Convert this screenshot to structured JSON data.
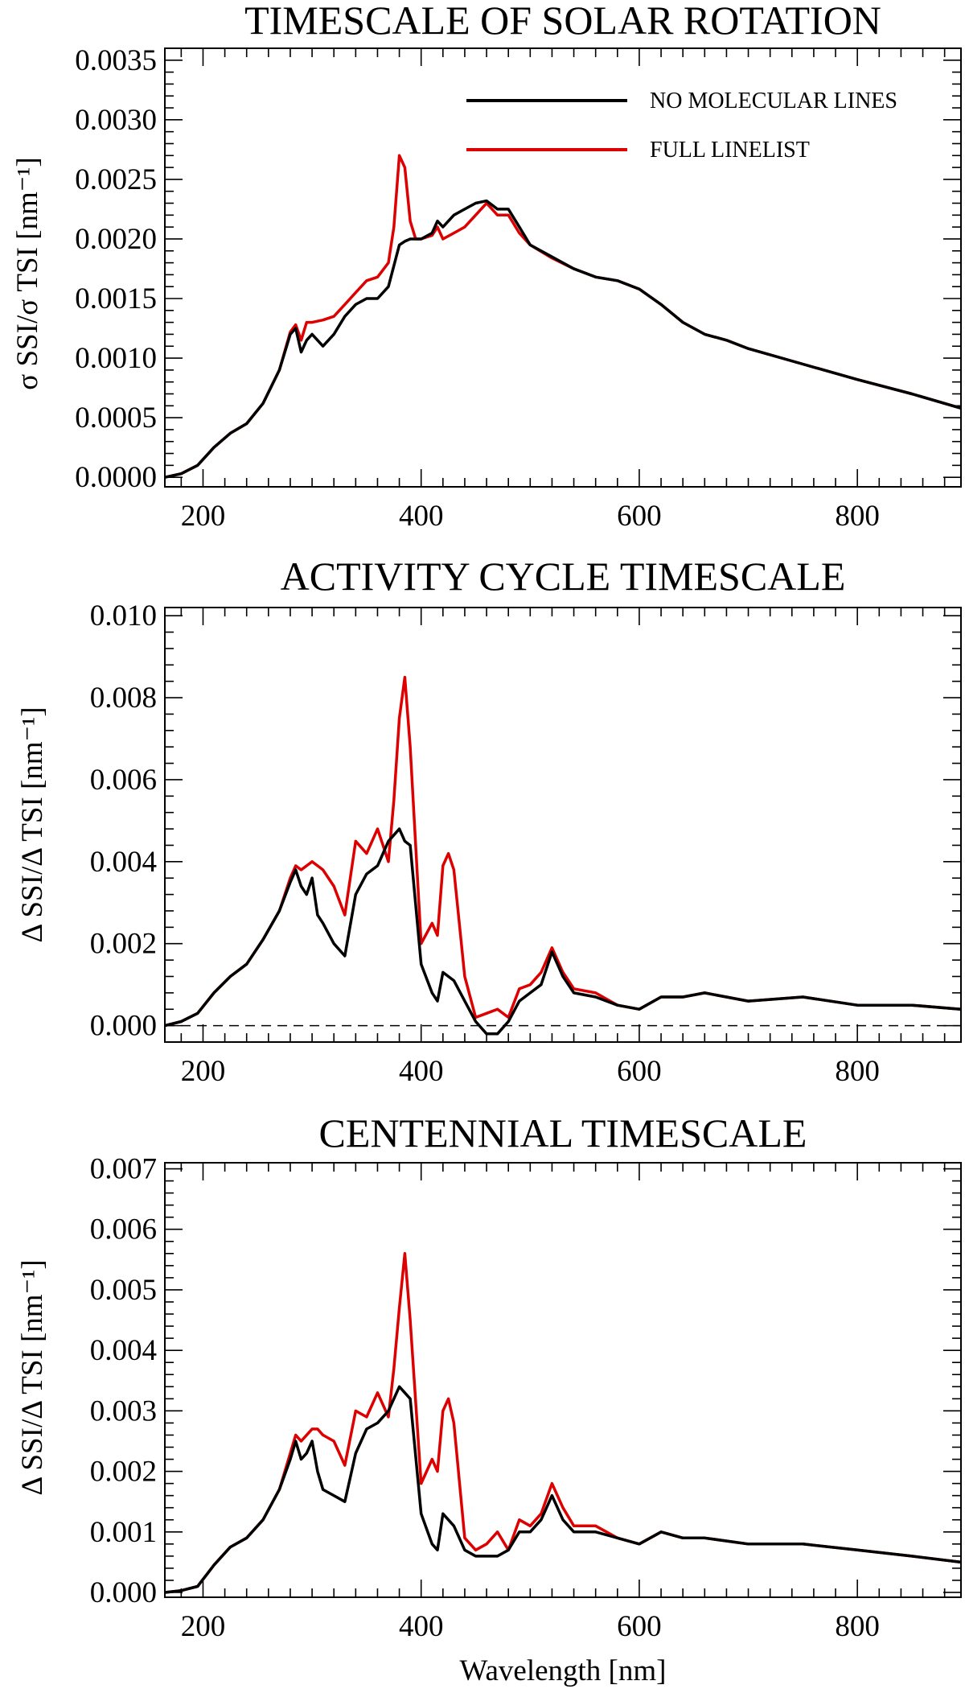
{
  "figure": {
    "xlabel": "Wavelength [nm]",
    "legend": [
      {
        "name": "NO MOLECULAR LINES",
        "color": "#000000"
      },
      {
        "name": "FULL LINELIST",
        "color": "#dd0000"
      }
    ]
  },
  "chart_data": [
    {
      "type": "line",
      "title": "TIMESCALE OF SOLAR ROTATION",
      "ylabel": "σ SSI/σ TSI [nm⁻¹]",
      "xlim": [
        165,
        895
      ],
      "ylim": [
        -8e-05,
        0.0036
      ],
      "xticks": [
        "200",
        "400",
        "600",
        "800"
      ],
      "xtick_values": [
        200,
        400,
        600,
        800
      ],
      "yticks": [
        "0.0000",
        "0.0005",
        "0.0010",
        "0.0015",
        "0.0020",
        "0.0025",
        "0.0030",
        "0.0035"
      ],
      "ytick_values": [
        0,
        0.0005,
        0.001,
        0.0015,
        0.002,
        0.0025,
        0.003,
        0.0035
      ],
      "legend_position": "top-right",
      "series": [
        {
          "name": "NO MOLECULAR LINES",
          "color": "#000000",
          "x": [
            165,
            180,
            195,
            210,
            225,
            240,
            255,
            270,
            280,
            285,
            290,
            295,
            300,
            310,
            320,
            330,
            340,
            350,
            360,
            370,
            380,
            385,
            390,
            400,
            410,
            415,
            420,
            430,
            440,
            450,
            460,
            470,
            480,
            490,
            500,
            520,
            540,
            560,
            580,
            600,
            620,
            640,
            660,
            680,
            700,
            750,
            800,
            850,
            895
          ],
          "y": [
            0.0,
            3e-05,
            0.0001,
            0.00025,
            0.00037,
            0.00045,
            0.00062,
            0.0009,
            0.0012,
            0.00125,
            0.00105,
            0.00115,
            0.0012,
            0.0011,
            0.0012,
            0.00135,
            0.00145,
            0.0015,
            0.0015,
            0.0016,
            0.00195,
            0.00198,
            0.002,
            0.002,
            0.00205,
            0.00215,
            0.0021,
            0.0022,
            0.00225,
            0.0023,
            0.00232,
            0.00225,
            0.00225,
            0.0021,
            0.00195,
            0.00185,
            0.00175,
            0.00168,
            0.00165,
            0.00158,
            0.00145,
            0.0013,
            0.0012,
            0.00115,
            0.00108,
            0.00095,
            0.00082,
            0.0007,
            0.00058
          ]
        },
        {
          "name": "FULL LINELIST",
          "color": "#dd0000",
          "x": [
            165,
            180,
            195,
            210,
            225,
            240,
            255,
            270,
            280,
            285,
            290,
            295,
            300,
            310,
            320,
            330,
            340,
            350,
            360,
            370,
            375,
            380,
            385,
            390,
            395,
            400,
            410,
            415,
            420,
            430,
            440,
            450,
            460,
            470,
            480,
            490,
            500,
            520,
            540,
            560,
            580,
            600,
            620,
            640,
            660,
            680,
            700,
            750,
            800,
            850,
            895
          ],
          "y": [
            0.0,
            3e-05,
            0.0001,
            0.00025,
            0.00037,
            0.00045,
            0.00062,
            0.0009,
            0.00122,
            0.00128,
            0.00115,
            0.0013,
            0.0013,
            0.00132,
            0.00135,
            0.00145,
            0.00155,
            0.00165,
            0.00168,
            0.0018,
            0.0021,
            0.0027,
            0.0026,
            0.00215,
            0.002,
            0.002,
            0.00203,
            0.0021,
            0.002,
            0.00205,
            0.0021,
            0.0022,
            0.0023,
            0.0022,
            0.0022,
            0.00205,
            0.00195,
            0.00184,
            0.00175,
            0.00168,
            0.00165,
            0.00158,
            0.00145,
            0.0013,
            0.0012,
            0.00115,
            0.00108,
            0.00095,
            0.00082,
            0.0007,
            0.00058
          ]
        }
      ]
    },
    {
      "type": "line",
      "title": "ACTIVITY CYCLE TIMESCALE",
      "ylabel": "Δ SSI/Δ TSI [nm⁻¹]",
      "xlim": [
        165,
        895
      ],
      "ylim": [
        -0.0004,
        0.0102
      ],
      "xticks": [
        "200",
        "400",
        "600",
        "800"
      ],
      "xtick_values": [
        200,
        400,
        600,
        800
      ],
      "yticks": [
        "0.000",
        "0.002",
        "0.004",
        "0.006",
        "0.008",
        "0.010"
      ],
      "ytick_values": [
        0,
        0.002,
        0.004,
        0.006,
        0.008,
        0.01
      ],
      "zero_line": "dashed",
      "series": [
        {
          "name": "NO MOLECULAR LINES",
          "color": "#000000",
          "x": [
            165,
            180,
            195,
            210,
            225,
            240,
            255,
            270,
            280,
            285,
            290,
            295,
            300,
            305,
            310,
            320,
            330,
            340,
            350,
            360,
            370,
            380,
            385,
            390,
            400,
            410,
            415,
            420,
            430,
            440,
            450,
            460,
            470,
            480,
            490,
            500,
            510,
            520,
            530,
            540,
            560,
            580,
            600,
            620,
            640,
            660,
            700,
            750,
            800,
            850,
            895
          ],
          "y": [
            0.0,
            0.0001,
            0.0003,
            0.0008,
            0.0012,
            0.0015,
            0.0021,
            0.0028,
            0.0035,
            0.0038,
            0.0034,
            0.0032,
            0.0036,
            0.0027,
            0.0025,
            0.002,
            0.0017,
            0.0032,
            0.0037,
            0.0039,
            0.0045,
            0.0048,
            0.0045,
            0.0044,
            0.0015,
            0.0008,
            0.0006,
            0.0013,
            0.0011,
            0.0006,
            0.0001,
            -0.0002,
            -0.0002,
            0.0001,
            0.0006,
            0.0008,
            0.001,
            0.0018,
            0.0012,
            0.0008,
            0.0007,
            0.0005,
            0.0004,
            0.0007,
            0.0007,
            0.0008,
            0.0006,
            0.0007,
            0.0005,
            0.0005,
            0.0004
          ]
        },
        {
          "name": "FULL LINELIST",
          "color": "#dd0000",
          "x": [
            165,
            180,
            195,
            210,
            225,
            240,
            255,
            270,
            280,
            285,
            290,
            295,
            300,
            305,
            310,
            320,
            330,
            340,
            350,
            360,
            370,
            375,
            380,
            385,
            390,
            400,
            410,
            415,
            420,
            425,
            430,
            440,
            450,
            460,
            470,
            480,
            490,
            500,
            510,
            520,
            530,
            540,
            560,
            580,
            600,
            620,
            640,
            660,
            700,
            750,
            800,
            850,
            895
          ],
          "y": [
            0.0,
            0.0001,
            0.0003,
            0.0008,
            0.0012,
            0.0015,
            0.0021,
            0.0028,
            0.0036,
            0.0039,
            0.0038,
            0.0039,
            0.004,
            0.0039,
            0.0038,
            0.0034,
            0.0027,
            0.0045,
            0.0042,
            0.0048,
            0.004,
            0.0055,
            0.0075,
            0.0085,
            0.0068,
            0.002,
            0.0025,
            0.0022,
            0.0039,
            0.0042,
            0.0038,
            0.0012,
            0.0002,
            0.0003,
            0.0004,
            0.0002,
            0.0009,
            0.001,
            0.0013,
            0.0019,
            0.0013,
            0.0009,
            0.0008,
            0.0005,
            0.0004,
            0.0007,
            0.0007,
            0.0008,
            0.0006,
            0.0007,
            0.0005,
            0.0005,
            0.0004
          ]
        }
      ]
    },
    {
      "type": "line",
      "title": "CENTENNIAL TIMESCALE",
      "ylabel": "Δ SSI/Δ TSI [nm⁻¹]",
      "xlim": [
        165,
        895
      ],
      "ylim": [
        -8e-05,
        0.0071
      ],
      "xticks": [
        "200",
        "400",
        "600",
        "800"
      ],
      "xtick_values": [
        200,
        400,
        600,
        800
      ],
      "yticks": [
        "0.000",
        "0.001",
        "0.002",
        "0.003",
        "0.004",
        "0.005",
        "0.006",
        "0.007"
      ],
      "ytick_values": [
        0,
        0.001,
        0.002,
        0.003,
        0.004,
        0.005,
        0.006,
        0.007
      ],
      "series": [
        {
          "name": "NO MOLECULAR LINES",
          "color": "#000000",
          "x": [
            165,
            180,
            195,
            210,
            225,
            240,
            255,
            270,
            280,
            285,
            290,
            295,
            300,
            305,
            310,
            320,
            330,
            340,
            350,
            360,
            370,
            380,
            385,
            390,
            400,
            410,
            415,
            420,
            430,
            440,
            450,
            460,
            470,
            480,
            490,
            500,
            510,
            520,
            530,
            540,
            560,
            580,
            600,
            620,
            640,
            660,
            700,
            750,
            800,
            850,
            895
          ],
          "y": [
            0.0,
            3e-05,
            0.0001,
            0.00045,
            0.00075,
            0.0009,
            0.0012,
            0.0017,
            0.0022,
            0.0025,
            0.0022,
            0.0023,
            0.0025,
            0.002,
            0.0017,
            0.0016,
            0.0015,
            0.0023,
            0.0027,
            0.0028,
            0.003,
            0.0034,
            0.0033,
            0.0032,
            0.0013,
            0.0008,
            0.0007,
            0.0013,
            0.0011,
            0.0007,
            0.0006,
            0.0006,
            0.0006,
            0.0007,
            0.001,
            0.001,
            0.0012,
            0.0016,
            0.0012,
            0.001,
            0.001,
            0.0009,
            0.0008,
            0.001,
            0.0009,
            0.0009,
            0.0008,
            0.0008,
            0.0007,
            0.0006,
            0.0005
          ]
        },
        {
          "name": "FULL LINELIST",
          "color": "#dd0000",
          "x": [
            165,
            180,
            195,
            210,
            225,
            240,
            255,
            270,
            280,
            285,
            290,
            295,
            300,
            305,
            310,
            320,
            330,
            340,
            350,
            360,
            370,
            375,
            380,
            385,
            390,
            400,
            410,
            415,
            420,
            425,
            430,
            440,
            450,
            460,
            470,
            480,
            490,
            500,
            510,
            520,
            530,
            540,
            560,
            580,
            600,
            620,
            640,
            660,
            700,
            750,
            800,
            850,
            895
          ],
          "y": [
            0.0,
            3e-05,
            0.0001,
            0.00045,
            0.00075,
            0.0009,
            0.0012,
            0.0017,
            0.0023,
            0.0026,
            0.0025,
            0.0026,
            0.0027,
            0.0027,
            0.0026,
            0.0025,
            0.0021,
            0.003,
            0.0029,
            0.0033,
            0.0029,
            0.0037,
            0.0047,
            0.0056,
            0.0045,
            0.0018,
            0.0022,
            0.002,
            0.003,
            0.0032,
            0.0028,
            0.0009,
            0.0007,
            0.0008,
            0.001,
            0.0007,
            0.0012,
            0.0011,
            0.0013,
            0.0018,
            0.0014,
            0.0011,
            0.0011,
            0.0009,
            0.0008,
            0.001,
            0.0009,
            0.0009,
            0.0008,
            0.0008,
            0.0007,
            0.0006,
            0.0005
          ]
        }
      ]
    }
  ]
}
